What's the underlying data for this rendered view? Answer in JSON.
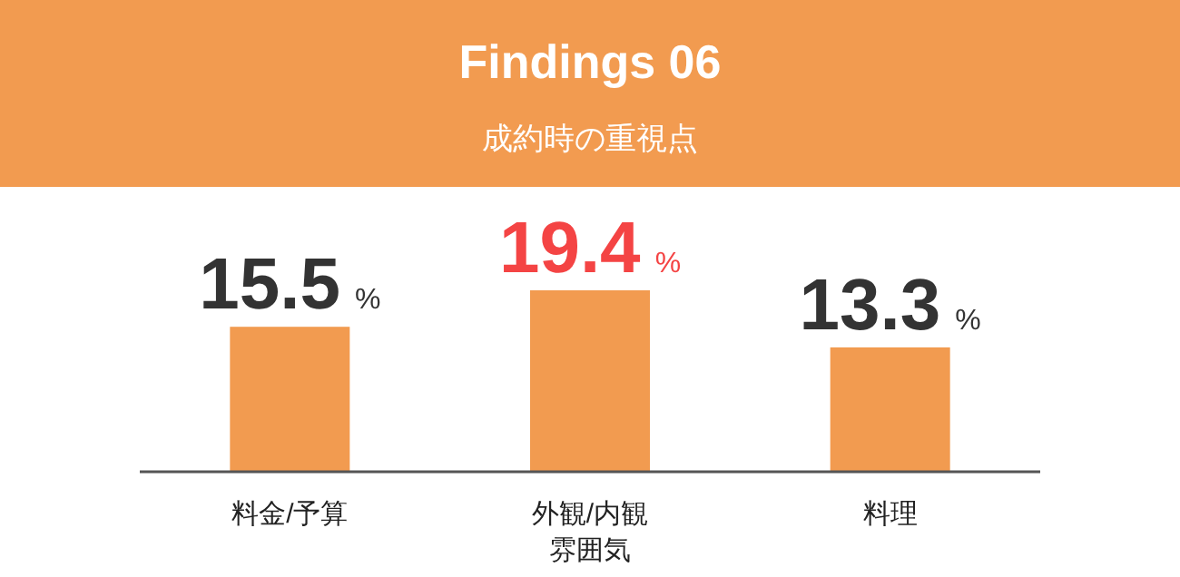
{
  "chart_data": {
    "type": "bar",
    "title": "Findings 06",
    "subtitle": "成約時の重視点",
    "categories": [
      "料金/予算",
      "外観/内観雰囲気",
      "料理"
    ],
    "values": [
      15.5,
      19.4,
      13.3
    ],
    "value_labels": [
      "15.5 %",
      "19.4 %",
      "13.3 %"
    ],
    "color": "#f29b50"
  }
}
